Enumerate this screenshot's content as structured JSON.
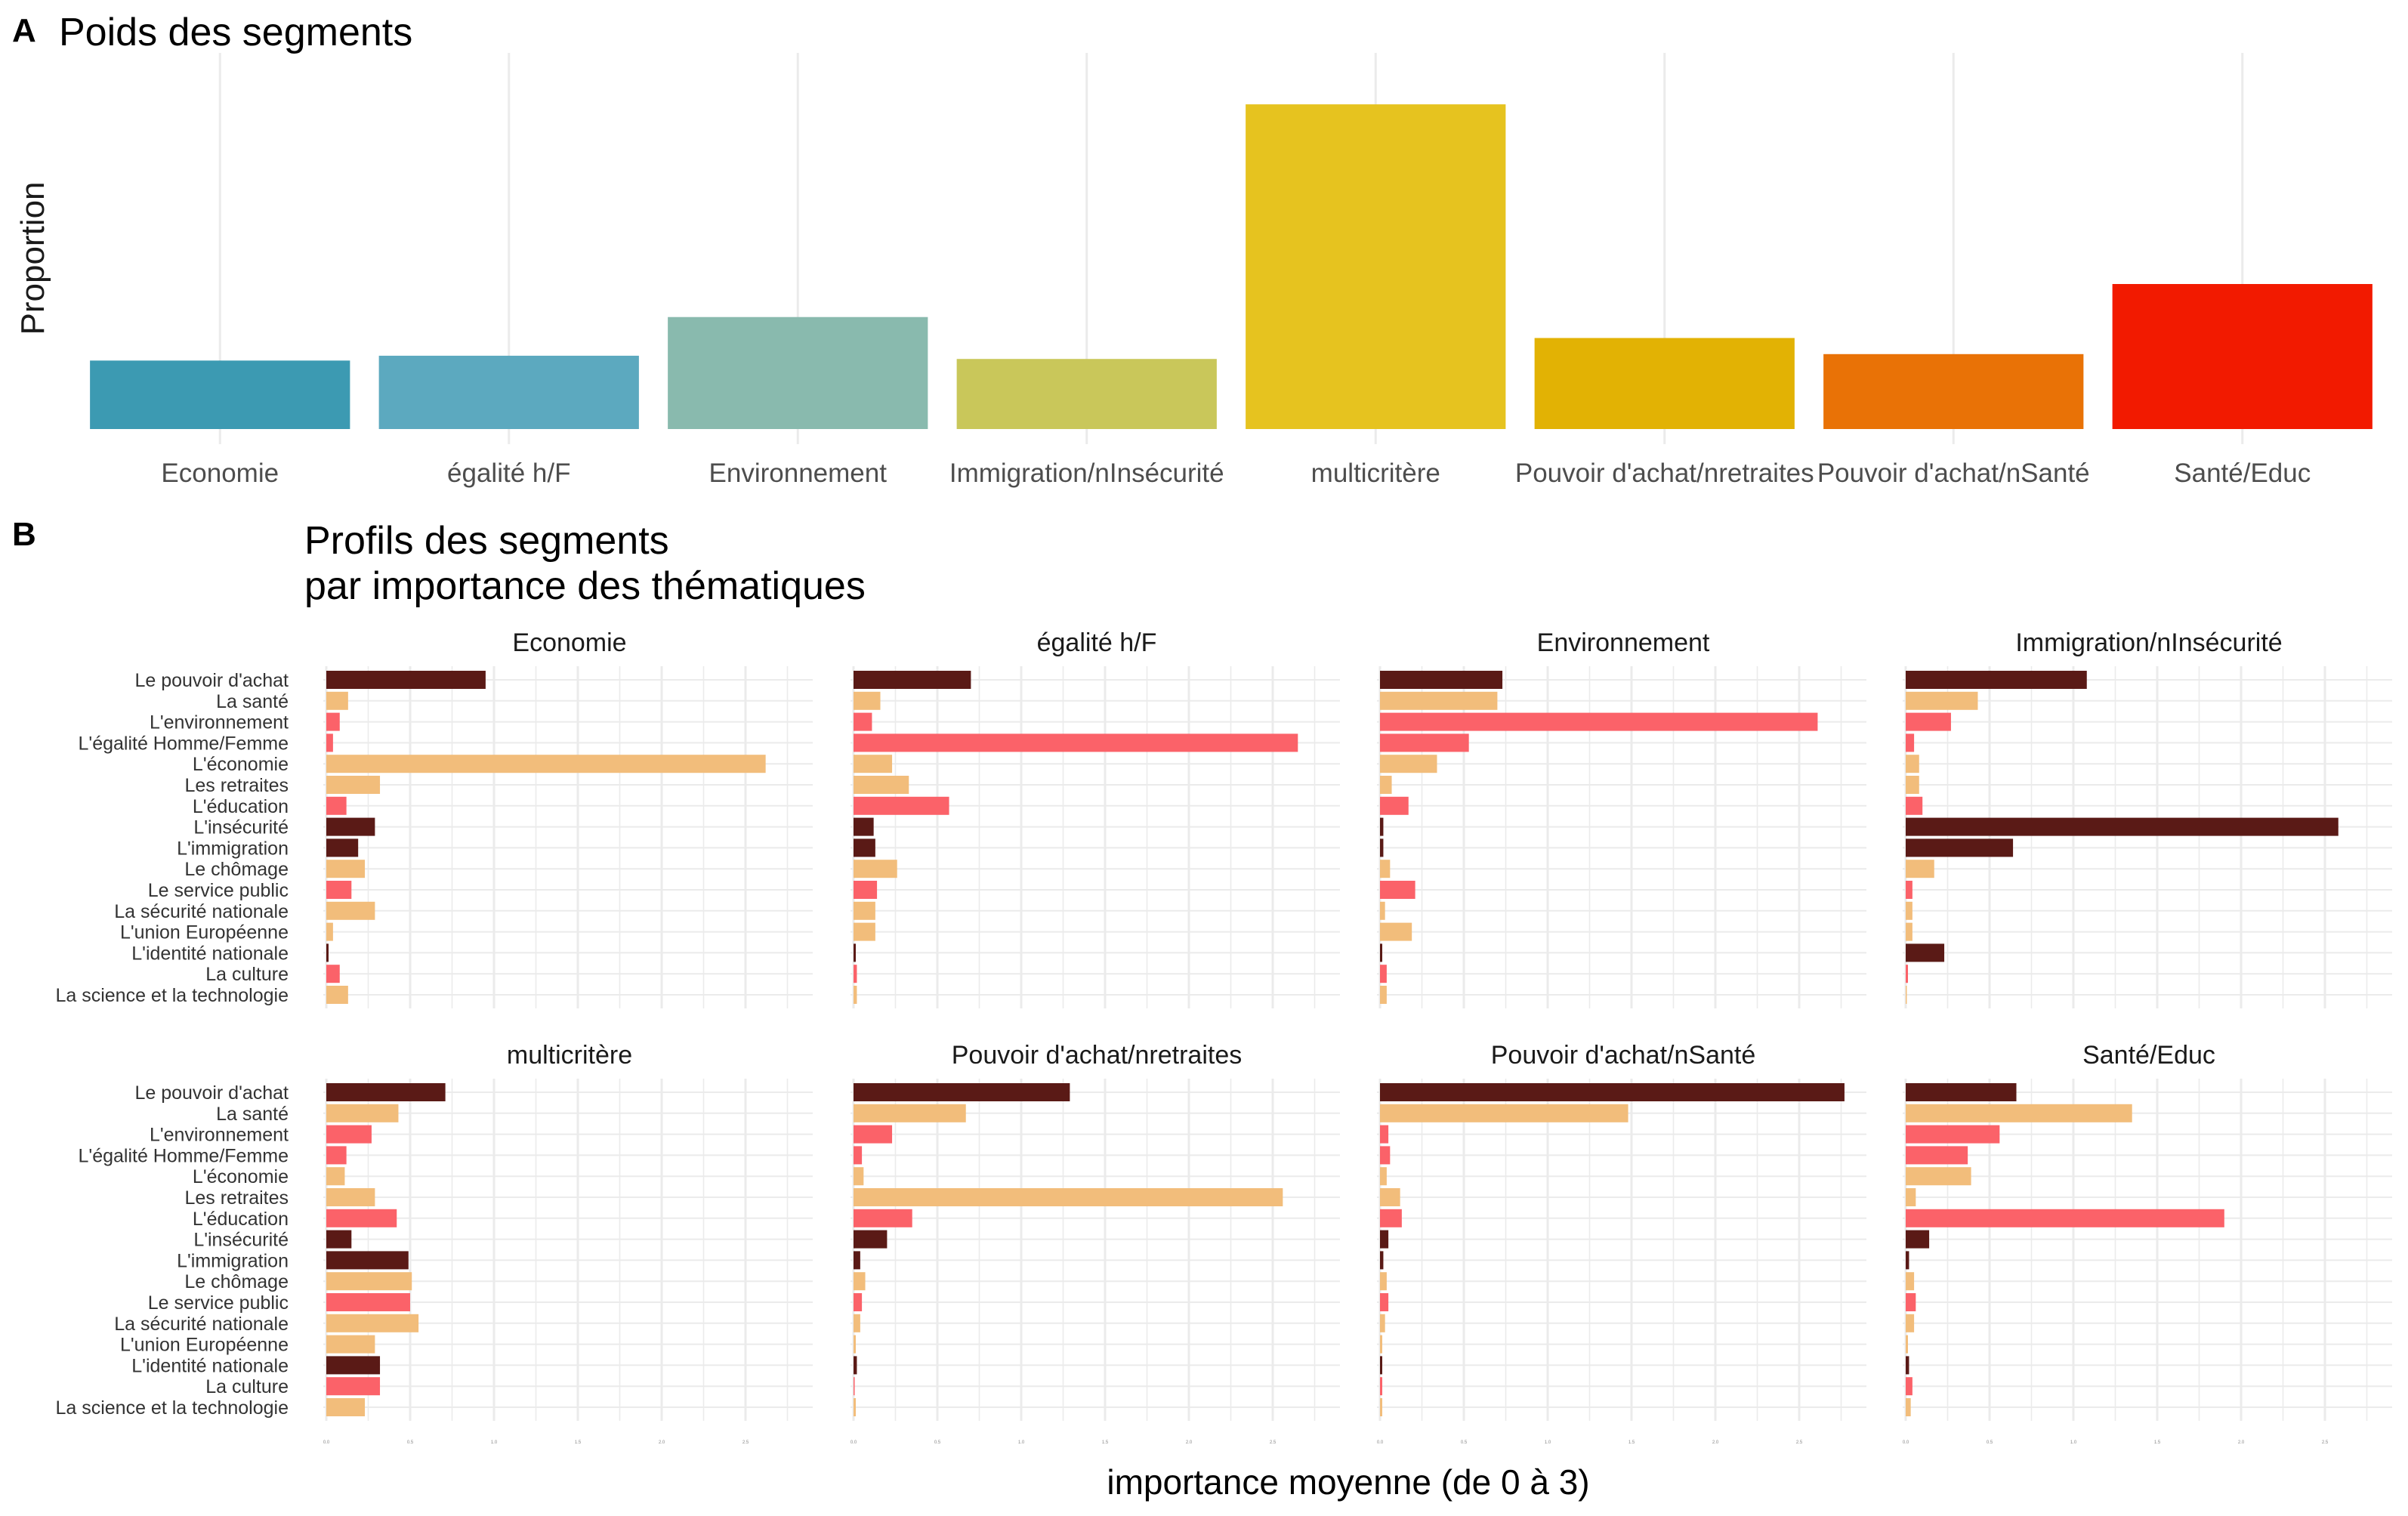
{
  "panel_a": {
    "tag": "A",
    "title": "Poids des segments",
    "ylabel": "Proportion"
  },
  "panel_b": {
    "tag": "B",
    "title_line1": "Profils des segments",
    "title_line2": "par importance des thématiques",
    "xlabel": "importance moyenne (de 0 à 3)"
  },
  "colors": {
    "economie": "#3C9AB2",
    "egalite": "#5CA9BF",
    "environnement": "#89BAAE",
    "immigration": "#C9C75A",
    "multicritere": "#E6C31F",
    "pouvoir_retraites": "#E2B204",
    "pouvoir_sante": "#E97206",
    "sante_educ": "#F21A00",
    "theme_dark": "#5A1A16",
    "theme_peach": "#F2BD7B",
    "theme_red": "#FB6269",
    "grid": "#EBEBEB"
  },
  "chart_data": [
    {
      "type": "bar",
      "title": "Poids des segments",
      "xlabel": "",
      "ylabel": "Proportion",
      "categories": [
        "Economie",
        "égalité h/F",
        "Environnement",
        "Immigration/nInsécurité",
        "multicritère",
        "Pouvoir d'achat/nretraites",
        "Pouvoir d'achat/nSanté",
        "Santé/Educ"
      ],
      "values": [
        0.085,
        0.091,
        0.139,
        0.087,
        0.403,
        0.113,
        0.093,
        0.18
      ],
      "ylim": [
        0,
        0.42
      ],
      "grid": true,
      "legend": "none"
    },
    {
      "type": "bar",
      "orientation": "horizontal",
      "facets": true,
      "title": "Profils des segments\npar importance des thématiques",
      "xlabel": "importance moyenne (de 0 à 3)",
      "ylabel": "",
      "xlim": [
        0,
        3
      ],
      "x_ticks": [
        "0.0",
        "0.5",
        "1.0",
        "1.5",
        "2.0",
        "2.5"
      ],
      "grid": true,
      "categories": [
        "Le pouvoir d'achat",
        "La santé",
        "L'environnement",
        "L'égalité Homme/Femme",
        "L'économie",
        "Les retraites",
        "L'éducation",
        "L'insécurité",
        "L'immigration",
        "Le chômage",
        "Le service public",
        "La sécurité nationale",
        "L'union Européenne",
        "L'identité nationale",
        "La culture",
        "La science et la technologie"
      ],
      "category_colors": [
        "#5A1A16",
        "#F2BD7B",
        "#FB6269",
        "#FB6269",
        "#F2BD7B",
        "#F2BD7B",
        "#FB6269",
        "#5A1A16",
        "#5A1A16",
        "#F2BD7B",
        "#FB6269",
        "#F2BD7B",
        "#F2BD7B",
        "#5A1A16",
        "#FB6269",
        "#F2BD7B"
      ],
      "series": [
        {
          "name": "Economie",
          "values": [
            0.95,
            0.13,
            0.08,
            0.04,
            2.62,
            0.32,
            0.12,
            0.29,
            0.19,
            0.23,
            0.15,
            0.29,
            0.04,
            0.01,
            0.08,
            0.13
          ]
        },
        {
          "name": "égalité h/F",
          "values": [
            0.7,
            0.16,
            0.11,
            2.65,
            0.23,
            0.33,
            0.57,
            0.12,
            0.13,
            0.26,
            0.14,
            0.13,
            0.13,
            0.01,
            0.02,
            0.02
          ]
        },
        {
          "name": "Environnement",
          "values": [
            0.73,
            0.7,
            2.61,
            0.53,
            0.34,
            0.07,
            0.17,
            0.02,
            0.02,
            0.06,
            0.21,
            0.03,
            0.19,
            0.01,
            0.04,
            0.04
          ]
        },
        {
          "name": "Immigration/nInsécurité",
          "values": [
            1.08,
            0.43,
            0.27,
            0.05,
            0.08,
            0.08,
            0.1,
            2.58,
            0.64,
            0.17,
            0.04,
            0.04,
            0.04,
            0.23,
            0.01,
            0.0
          ]
        },
        {
          "name": "multicritère",
          "values": [
            0.71,
            0.43,
            0.27,
            0.12,
            0.11,
            0.29,
            0.42,
            0.15,
            0.49,
            0.51,
            0.5,
            0.55,
            0.29,
            0.32,
            0.32,
            0.23
          ]
        },
        {
          "name": "Pouvoir d'achat/nretraites",
          "values": [
            1.29,
            0.67,
            0.23,
            0.05,
            0.06,
            2.56,
            0.35,
            0.2,
            0.04,
            0.07,
            0.05,
            0.04,
            0.01,
            0.02,
            0.0,
            0.01
          ]
        },
        {
          "name": "Pouvoir d'achat/nSanté",
          "values": [
            2.77,
            1.48,
            0.05,
            0.06,
            0.04,
            0.12,
            0.13,
            0.05,
            0.02,
            0.04,
            0.05,
            0.03,
            0.01,
            0.01,
            0.01,
            0.01
          ]
        },
        {
          "name": "Santé/Educ",
          "values": [
            0.66,
            1.35,
            0.56,
            0.37,
            0.39,
            0.06,
            1.9,
            0.14,
            0.02,
            0.05,
            0.06,
            0.05,
            0.01,
            0.02,
            0.04,
            0.03
          ]
        }
      ]
    }
  ]
}
